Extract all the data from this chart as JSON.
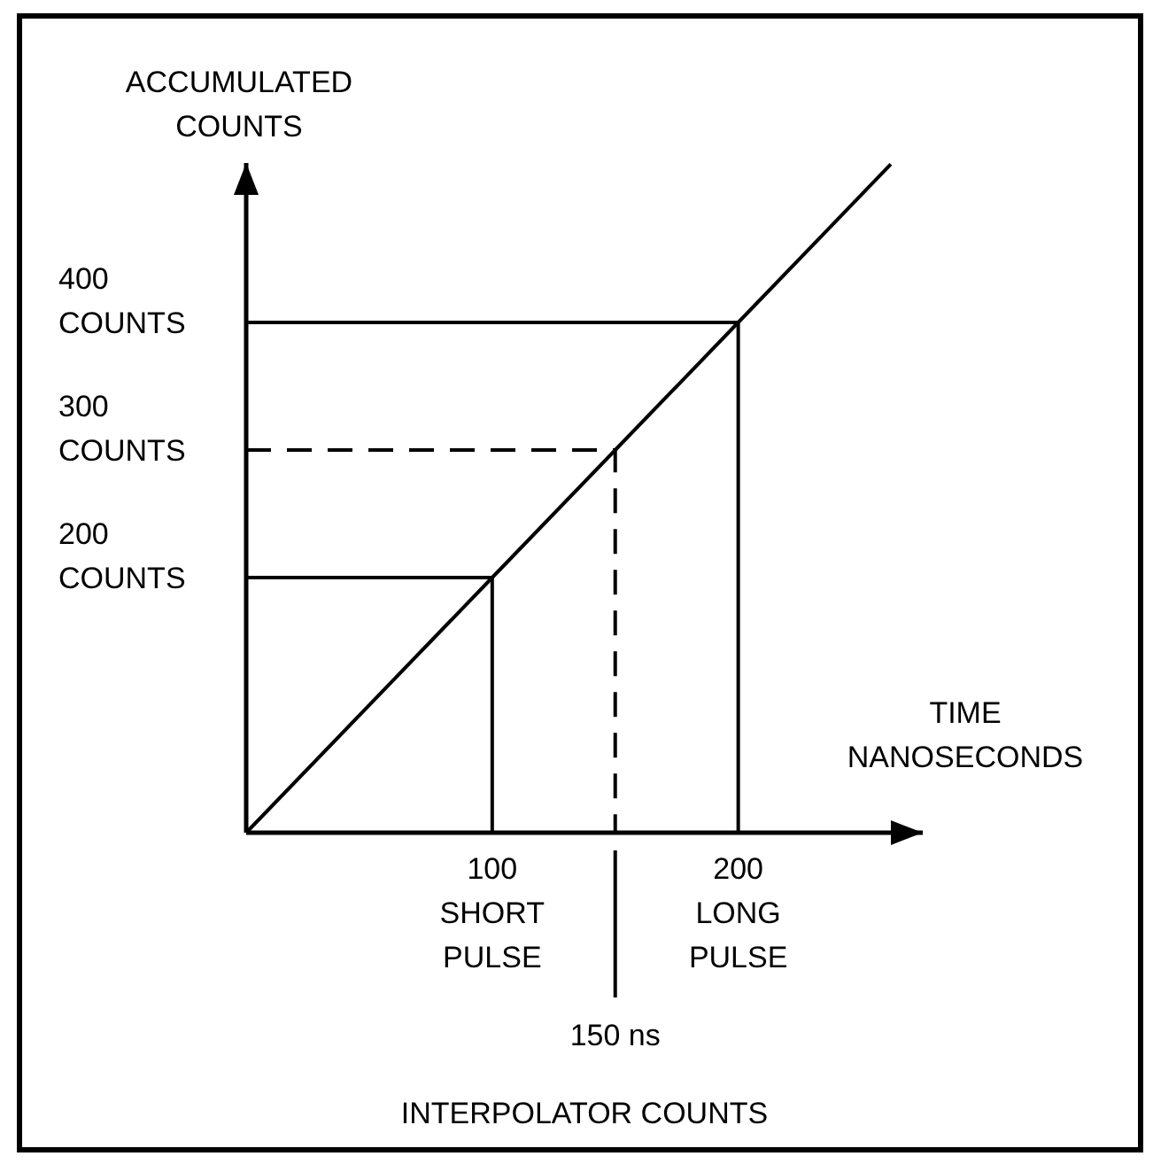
{
  "chart_data": {
    "type": "line",
    "xlabel": "TIME\nNANOSECONDS",
    "ylabel": "ACCUMULATED\nCOUNTS",
    "xlim": [
      0,
      275
    ],
    "ylim": [
      0,
      525
    ],
    "xticks": [
      {
        "value": 100,
        "label": "100\nSHORT\nPULSE"
      },
      {
        "value": 200,
        "label": "200\nLONG\nPULSE"
      }
    ],
    "yticks": [
      {
        "value": 200,
        "label": "200\nCOUNTS"
      },
      {
        "value": 300,
        "label": "300\nCOUNTS"
      },
      {
        "value": 400,
        "label": "400\nCOUNTS"
      }
    ],
    "series": [
      {
        "color": "#000000",
        "x": [
          0,
          100,
          150,
          200,
          262
        ],
        "values": [
          0,
          200,
          300,
          400,
          524
        ]
      },
      {
        "color": "#000000",
        "x": [
          0,
          100,
          100
        ],
        "values": [
          200,
          200,
          0
        ]
      },
      {
        "color": "#000000",
        "line_style": "dashed",
        "x": [
          0,
          150,
          150
        ],
        "values": [
          300,
          300,
          0
        ]
      },
      {
        "color": "#000000",
        "x": [
          0,
          200,
          200
        ],
        "values": [
          400,
          400,
          0
        ]
      }
    ],
    "ref_lines": [
      {
        "axis": "x",
        "value": 150,
        "label": "150 ns"
      }
    ],
    "annotations": [
      "INTERPOLATOR COUNTS"
    ]
  }
}
